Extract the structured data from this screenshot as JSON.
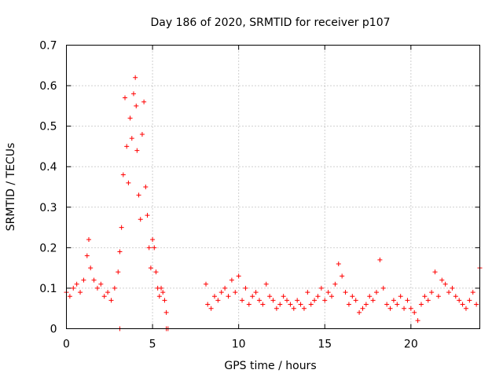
{
  "chart_data": {
    "type": "scatter",
    "title": "Day 186 of 2020, SRMTID for receiver p107",
    "xlabel": "GPS time / hours",
    "ylabel": "SRMTID / TECUs",
    "xlim": [
      0,
      24
    ],
    "ylim": [
      0,
      0.7
    ],
    "xticks": [
      0,
      5,
      10,
      15,
      20
    ],
    "xtick_labels": [
      "0",
      "5",
      "10",
      "15",
      "20"
    ],
    "yticks": [
      0,
      0.1,
      0.2,
      0.3,
      0.4,
      0.5,
      0.6,
      0.7
    ],
    "ytick_labels": [
      "0",
      "0.1",
      "0.2",
      "0.3",
      "0.4",
      "0.5",
      "0.6",
      "0.7"
    ],
    "grid": true,
    "marker": "plus",
    "color": "#ff0000",
    "series": [
      {
        "name": "SRMTID",
        "x": [
          0.0,
          0.2,
          0.4,
          0.6,
          0.8,
          1.0,
          1.2,
          1.3,
          1.4,
          1.6,
          1.8,
          2.0,
          2.2,
          2.4,
          2.6,
          2.8,
          3.0,
          3.1,
          3.2,
          3.3,
          3.4,
          3.5,
          3.6,
          3.7,
          3.8,
          3.9,
          4.0,
          4.05,
          4.1,
          4.2,
          4.3,
          4.4,
          4.5,
          4.6,
          4.7,
          4.8,
          4.9,
          5.0,
          5.1,
          5.2,
          5.3,
          5.4,
          5.5,
          5.6,
          5.7,
          5.8,
          8.1,
          8.2,
          8.4,
          8.6,
          8.8,
          9.0,
          9.2,
          9.4,
          9.6,
          9.8,
          10.0,
          10.2,
          10.4,
          10.6,
          10.8,
          11.0,
          11.2,
          11.4,
          11.6,
          11.8,
          12.0,
          12.2,
          12.4,
          12.6,
          12.8,
          13.0,
          13.2,
          13.4,
          13.6,
          13.8,
          14.0,
          14.2,
          14.4,
          14.6,
          14.8,
          15.0,
          15.2,
          15.4,
          15.6,
          15.8,
          16.0,
          16.2,
          16.4,
          16.6,
          16.8,
          17.0,
          17.2,
          17.4,
          17.6,
          17.8,
          18.0,
          18.2,
          18.4,
          18.6,
          18.8,
          19.0,
          19.2,
          19.4,
          19.6,
          19.8,
          20.0,
          20.2,
          20.4,
          20.6,
          20.8,
          21.0,
          21.2,
          21.4,
          21.6,
          21.8,
          22.0,
          22.2,
          22.4,
          22.6,
          22.8,
          23.0,
          23.2,
          23.4,
          23.6,
          23.8,
          24.0,
          3.1,
          5.8,
          5.9
        ],
        "y": [
          0.09,
          0.08,
          0.1,
          0.11,
          0.09,
          0.12,
          0.18,
          0.22,
          0.15,
          0.12,
          0.1,
          0.11,
          0.08,
          0.09,
          0.07,
          0.1,
          0.14,
          0.19,
          0.25,
          0.38,
          0.57,
          0.45,
          0.36,
          0.52,
          0.47,
          0.58,
          0.62,
          0.55,
          0.44,
          0.33,
          0.27,
          0.48,
          0.56,
          0.35,
          0.28,
          0.2,
          0.15,
          0.22,
          0.2,
          0.14,
          0.1,
          0.08,
          0.1,
          0.09,
          0.07,
          0.04,
          0.11,
          0.06,
          0.05,
          0.08,
          0.07,
          0.09,
          0.1,
          0.08,
          0.12,
          0.09,
          0.13,
          0.07,
          0.1,
          0.06,
          0.08,
          0.09,
          0.07,
          0.06,
          0.11,
          0.08,
          0.07,
          0.05,
          0.06,
          0.08,
          0.07,
          0.06,
          0.05,
          0.07,
          0.06,
          0.05,
          0.09,
          0.06,
          0.07,
          0.08,
          0.1,
          0.07,
          0.09,
          0.08,
          0.11,
          0.16,
          0.13,
          0.09,
          0.06,
          0.08,
          0.07,
          0.04,
          0.05,
          0.06,
          0.08,
          0.07,
          0.09,
          0.17,
          0.1,
          0.06,
          0.05,
          0.07,
          0.06,
          0.08,
          0.05,
          0.07,
          0.05,
          0.04,
          0.02,
          0.06,
          0.08,
          0.07,
          0.09,
          0.14,
          0.08,
          0.12,
          0.11,
          0.09,
          0.1,
          0.08,
          0.07,
          0.06,
          0.05,
          0.07,
          0.09,
          0.06,
          0.15,
          0.0,
          0.0,
          0.0
        ]
      }
    ]
  }
}
